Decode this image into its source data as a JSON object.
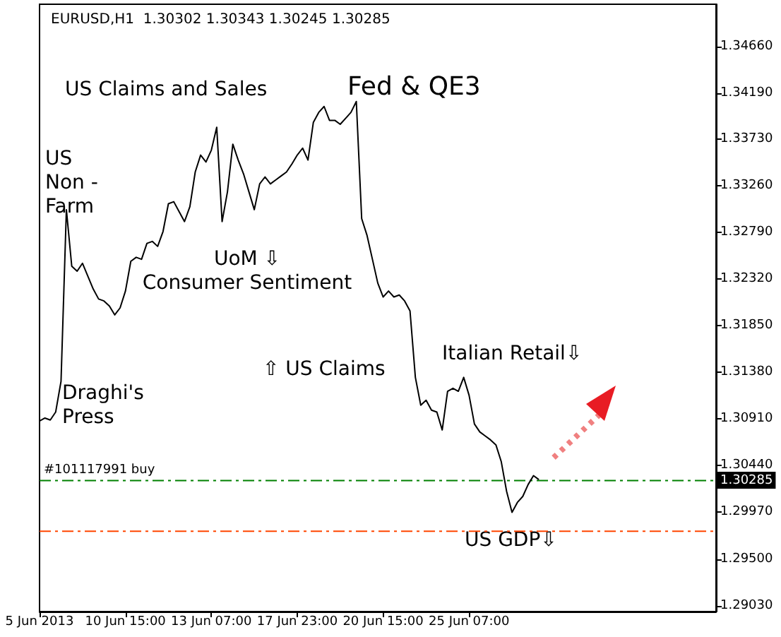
{
  "chart_data": {
    "type": "line",
    "title": "EURUSD,H1  1.30302 1.30343 1.30245 1.30285",
    "categories": [
      "5 Jun 2013",
      null,
      null,
      null,
      null,
      null,
      null,
      null,
      null,
      null,
      null,
      null,
      null,
      null,
      null,
      null,
      "10 Jun 15:00",
      null,
      null,
      null,
      null,
      null,
      null,
      null,
      null,
      null,
      null,
      null,
      null,
      null,
      null,
      null,
      "13 Jun 07:00",
      null,
      null,
      null,
      null,
      null,
      null,
      null,
      null,
      null,
      null,
      null,
      null,
      null,
      null,
      null,
      "17 Jun 23:00",
      null,
      null,
      null,
      null,
      null,
      null,
      null,
      null,
      null,
      null,
      null,
      null,
      null,
      null,
      null,
      "20 Jun 15:00",
      null,
      null,
      null,
      null,
      null,
      null,
      null,
      null,
      null,
      null,
      null,
      null,
      null,
      null,
      null,
      "25 Jun 07:00",
      null,
      null,
      null,
      null,
      null,
      null,
      null,
      null,
      null,
      null,
      null,
      null,
      null,
      null,
      null,
      null,
      null,
      null,
      null,
      null,
      null,
      null,
      null,
      null,
      null,
      null,
      null,
      null,
      null,
      null,
      null,
      null,
      null,
      null,
      null,
      null,
      null,
      null,
      null,
      null,
      null,
      null,
      null,
      null,
      null,
      null
    ],
    "series": [
      {
        "color": "#000000",
        "values": [
          1.3089,
          1.3092,
          1.309,
          1.3098,
          1.3129,
          1.3302,
          1.3245,
          1.324,
          1.3248,
          1.3235,
          1.3222,
          1.3212,
          1.321,
          1.3205,
          1.3196,
          1.3203,
          1.322,
          1.325,
          1.3254,
          1.3252,
          1.3268,
          1.327,
          1.3265,
          1.328,
          1.3308,
          1.331,
          1.33,
          1.329,
          1.3305,
          1.334,
          1.3357,
          1.335,
          1.3362,
          1.3385,
          1.329,
          1.332,
          1.3368,
          1.3352,
          1.3338,
          1.332,
          1.3302,
          1.3328,
          1.3335,
          1.3328,
          1.3332,
          1.3336,
          1.334,
          1.3348,
          1.3357,
          1.3364,
          1.3352,
          1.339,
          1.34,
          1.3406,
          1.3392,
          1.3392,
          1.3388,
          1.3394,
          1.34,
          1.3411,
          1.3293,
          1.3276,
          1.3252,
          1.3228,
          1.3214,
          1.322,
          1.3214,
          1.3216,
          1.321,
          1.32,
          1.3133,
          1.3105,
          1.311,
          1.31,
          1.3098,
          1.308,
          1.3119,
          1.3122,
          1.3119,
          1.3133,
          1.3115,
          1.3086,
          1.3078,
          1.3074,
          1.307,
          1.3065,
          1.3048,
          1.3018,
          1.2997,
          1.3007,
          1.3013,
          1.3025,
          1.3034,
          1.303,
          null,
          null,
          null,
          null,
          null,
          null,
          null,
          null,
          null,
          null,
          null,
          null,
          null,
          null,
          null,
          null,
          null,
          null,
          null,
          null,
          null,
          null,
          null,
          null,
          null,
          null,
          null,
          null,
          null,
          null,
          null,
          null,
          null
        ]
      }
    ],
    "ylim": [
      1.2897,
      1.3509
    ],
    "yticks": [
      {
        "value": 1.2903,
        "label": "1.29030"
      },
      {
        "value": 1.295,
        "label": "1.29500"
      },
      {
        "value": 1.2997,
        "label": "1.29970"
      },
      {
        "value": 1.3044,
        "label": "1.30440"
      },
      {
        "value": 1.3091,
        "label": "1.30910"
      },
      {
        "value": 1.3138,
        "label": "1.31380"
      },
      {
        "value": 1.3185,
        "label": "1.31850"
      },
      {
        "value": 1.3232,
        "label": "1.32320"
      },
      {
        "value": 1.3279,
        "label": "1.32790"
      },
      {
        "value": 1.3326,
        "label": "1.33260"
      },
      {
        "value": 1.3373,
        "label": "1.33730"
      },
      {
        "value": 1.3419,
        "label": "1.34190"
      },
      {
        "value": 1.3466,
        "label": "1.34660"
      }
    ],
    "ref_lines": [
      {
        "axis": "y",
        "value": 1.3029,
        "label": "#101117991 buy",
        "color": "#008000",
        "line_style": "dashed"
      },
      {
        "axis": "y",
        "value": 1.2978,
        "color": "#ff4500",
        "line_style": "dashed"
      }
    ],
    "annotations": [
      "US Claims and Sales",
      "Fed & QE3",
      "US\nNon -\nFarm",
      "UoM ⇩\nConsumer Sentiment",
      "Draghi's\nPress",
      "⇧ US Claims",
      "Italian Retail⇩",
      "US GDP⇩",
      "1.30285"
    ],
    "grid": false,
    "marker": "none"
  }
}
